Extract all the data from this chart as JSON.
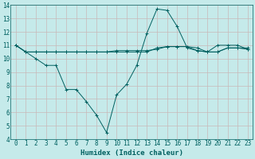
{
  "xlabel": "Humidex (Indice chaleur)",
  "xlim": [
    -0.5,
    23.5
  ],
  "ylim": [
    4,
    14
  ],
  "xticks": [
    0,
    1,
    2,
    3,
    4,
    5,
    6,
    7,
    8,
    9,
    10,
    11,
    12,
    13,
    14,
    15,
    16,
    17,
    18,
    19,
    20,
    21,
    22,
    23
  ],
  "yticks": [
    4,
    5,
    6,
    7,
    8,
    9,
    10,
    11,
    12,
    13,
    14
  ],
  "bg_color": "#c5eaea",
  "line_color": "#006060",
  "grid_major_color": "#c8b8b8",
  "series": [
    {
      "x": [
        0,
        1,
        2,
        3,
        4,
        5,
        6,
        7,
        8,
        9,
        10,
        11,
        12,
        13,
        14,
        15,
        16,
        17,
        18,
        19,
        20,
        21,
        22,
        23
      ],
      "y": [
        11.0,
        10.5,
        10.0,
        9.5,
        9.5,
        7.7,
        7.7,
        6.8,
        5.8,
        4.5,
        7.3,
        8.1,
        9.5,
        11.9,
        13.7,
        13.6,
        12.4,
        10.8,
        10.6,
        10.5,
        11.0,
        11.0,
        11.0,
        10.7
      ]
    },
    {
      "x": [
        0,
        1,
        2,
        3,
        4,
        5,
        6,
        7,
        8,
        9,
        10,
        11,
        12,
        13,
        14,
        15,
        16,
        17,
        18,
        19,
        20,
        21,
        22,
        23
      ],
      "y": [
        11.0,
        10.5,
        10.5,
        10.5,
        10.5,
        10.5,
        10.5,
        10.5,
        10.5,
        10.5,
        10.5,
        10.5,
        10.5,
        10.5,
        10.8,
        10.9,
        10.9,
        10.9,
        10.8,
        10.5,
        10.5,
        10.8,
        10.8,
        10.8
      ]
    },
    {
      "x": [
        0,
        1,
        2,
        3,
        4,
        5,
        6,
        7,
        8,
        9,
        10,
        11,
        12,
        13,
        14,
        15,
        16,
        17,
        18,
        19,
        20,
        21,
        22,
        23
      ],
      "y": [
        11.0,
        10.5,
        10.5,
        10.5,
        10.5,
        10.5,
        10.5,
        10.5,
        10.5,
        10.5,
        10.6,
        10.6,
        10.6,
        10.6,
        10.7,
        10.9,
        10.9,
        10.9,
        10.6,
        10.5,
        10.5,
        10.8,
        10.8,
        10.7
      ]
    }
  ],
  "tick_fontsize": 5.5,
  "label_fontsize": 6.5,
  "lw": 0.7,
  "marker_size": 1.5
}
